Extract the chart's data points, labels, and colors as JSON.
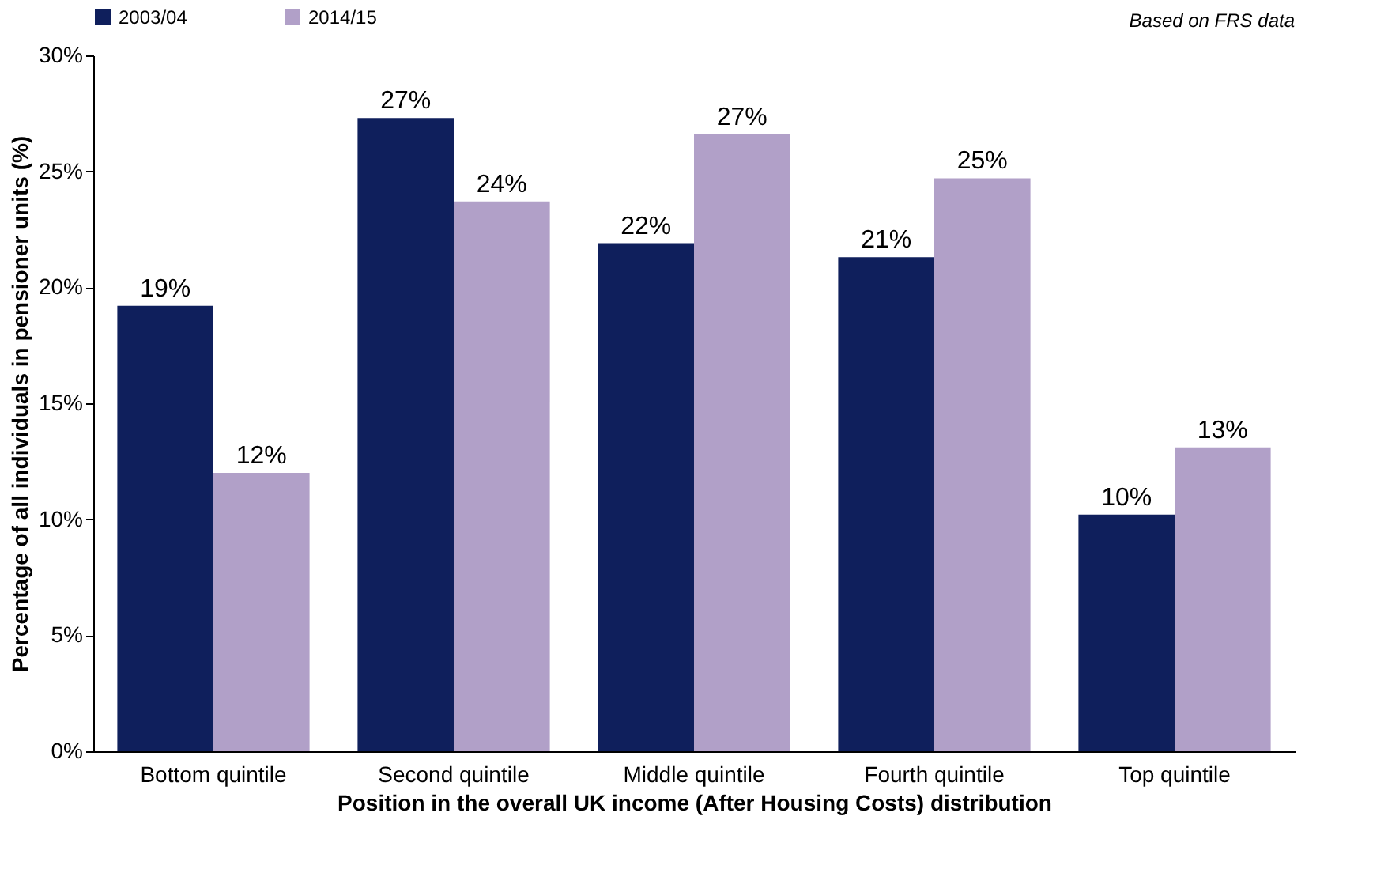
{
  "chart_data": {
    "type": "bar",
    "xlabel": "Position in the overall UK income (After Housing Costs) distribution",
    "ylabel": "Percentage of all individuals in pensioner units (%)",
    "categories": [
      "Bottom quintile",
      "Second quintile",
      "Middle quintile",
      "Fourth quintile",
      "Top quintile"
    ],
    "series": [
      {
        "name": "2003/04",
        "color": "#0f1f5c",
        "values": [
          19.2,
          27.3,
          21.9,
          21.3,
          10.2
        ],
        "value_labels": [
          "19%",
          "27%",
          "22%",
          "21%",
          "10%"
        ]
      },
      {
        "name": "2014/15",
        "color": "#b1a0c8",
        "values": [
          12.0,
          23.7,
          26.6,
          24.7,
          13.1
        ],
        "value_labels": [
          "12%",
          "24%",
          "27%",
          "25%",
          "13%"
        ]
      }
    ],
    "ylim": [
      0,
      30
    ],
    "yticks": [
      {
        "value": 0,
        "label": "0%"
      },
      {
        "value": 5,
        "label": "5%"
      },
      {
        "value": 10,
        "label": "10%"
      },
      {
        "value": 15,
        "label": "15%"
      },
      {
        "value": 20,
        "label": "20%"
      },
      {
        "value": 25,
        "label": "25%"
      },
      {
        "value": 30,
        "label": "30%"
      }
    ],
    "annotations": [
      "Based on FRS data"
    ],
    "legend": "top",
    "grid": false
  }
}
